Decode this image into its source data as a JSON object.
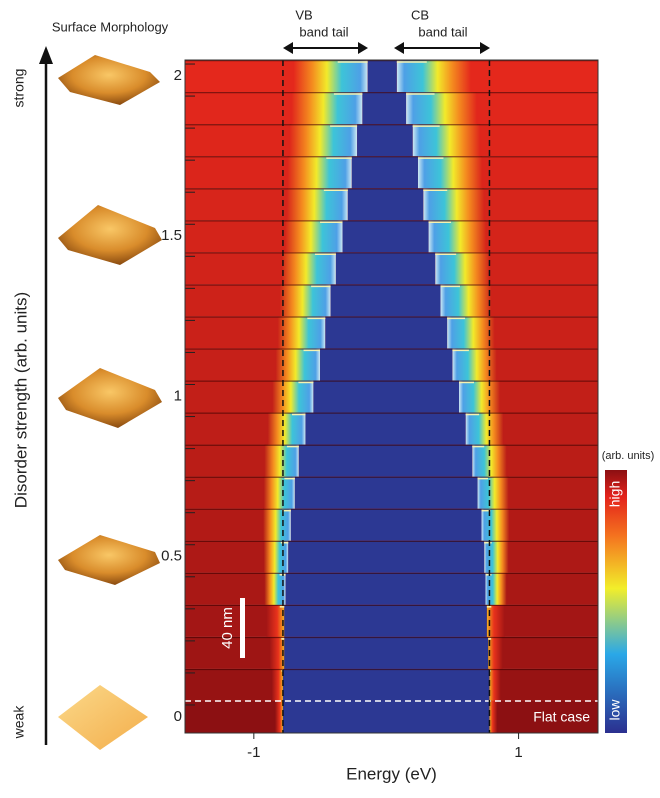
{
  "chart_data": {
    "type": "band-heatmap",
    "xlabel": "Energy (eV)",
    "ylabel": "Disorder strength (arb. units)",
    "xlim": [
      -1.52,
      1.6
    ],
    "ylim": [
      -0.05,
      2.05
    ],
    "xticks": [
      -1,
      1
    ],
    "yticks": [
      0,
      0.5,
      1,
      1.5,
      2
    ],
    "rows": [
      0,
      0.1,
      0.2,
      0.3,
      0.4,
      0.5,
      0.6,
      0.7,
      0.8,
      0.9,
      1,
      1.1,
      1.2,
      1.3,
      1.4,
      1.5,
      1.6,
      1.7,
      1.8,
      1.9,
      2
    ],
    "vb_edge": [
      -0.78,
      -0.78,
      -0.77,
      -0.77,
      -0.76,
      -0.74,
      -0.72,
      -0.69,
      -0.66,
      -0.61,
      -0.55,
      -0.5,
      -0.46,
      -0.42,
      -0.38,
      -0.33,
      -0.29,
      -0.26,
      -0.22,
      -0.18,
      -0.14
    ],
    "cb_edge": [
      0.78,
      0.78,
      0.77,
      0.76,
      0.75,
      0.74,
      0.72,
      0.69,
      0.65,
      0.6,
      0.55,
      0.5,
      0.46,
      0.41,
      0.37,
      0.32,
      0.28,
      0.24,
      0.2,
      0.15,
      0.08
    ],
    "dashed_lines": [
      -0.78,
      0.78
    ],
    "annotations": {
      "morphology": "Surface Morphology",
      "vb_1": "VB",
      "vb_2": "band tail",
      "cb_1": "CB",
      "cb_2": "band tail",
      "strong": "strong",
      "weak": "weak",
      "flat": "Flat case",
      "scale": "40 nm"
    },
    "colorbar": {
      "title": "(arb. units)",
      "high": "high",
      "low": "low"
    }
  }
}
